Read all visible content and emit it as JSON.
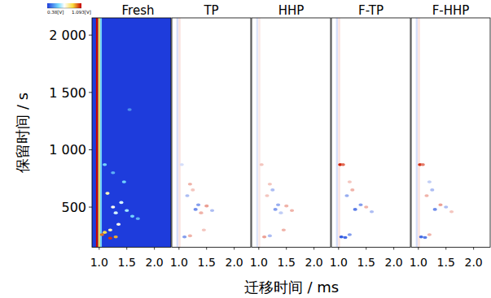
{
  "chart_data": {
    "type": "heatmap_panels",
    "xlabel": "迁移时间 / ms",
    "ylabel": "保留时间 / s",
    "xlim": [
      0.87,
      2.3
    ],
    "xticks": [
      {
        "value": 1,
        "label": "1.0"
      },
      {
        "value": 1.5,
        "label": "1.5"
      },
      {
        "value": 2,
        "label": "2.0"
      }
    ],
    "ylim": [
      150,
      2150
    ],
    "yticks": [
      500,
      {
        "value": 1000,
        "label": "1 000"
      },
      {
        "value": 1500,
        "label": "1 500"
      },
      {
        "value": 2000,
        "label": "2 000"
      }
    ],
    "colorbar": {
      "range": [
        0.38,
        1.093
      ],
      "ticks": [
        {
          "value": 0.38,
          "label": "0.38[V]"
        },
        {
          "value": 1.093,
          "label": "1.093[V]"
        }
      ]
    },
    "panels": [
      {
        "name": "Fresh",
        "type": "absolute",
        "ridges": [
          [
            0.96,
            1.09
          ],
          [
            1.0,
            0.9
          ],
          [
            1.03,
            0.6
          ]
        ],
        "cells": [
          [
            1.2,
            230,
            1.05
          ],
          [
            1.3,
            240,
            0.95
          ],
          [
            1.05,
            260,
            1.0
          ],
          [
            1.1,
            280,
            0.9
          ],
          [
            1.2,
            300,
            0.8
          ],
          [
            1.35,
            350,
            0.75
          ],
          [
            1.7,
            400,
            0.55
          ],
          [
            1.6,
            420,
            0.6
          ],
          [
            1.3,
            450,
            0.7
          ],
          [
            1.5,
            470,
            0.65
          ],
          [
            1.25,
            500,
            0.75
          ],
          [
            1.4,
            540,
            0.7
          ],
          [
            1.15,
            620,
            0.8
          ],
          [
            1.45,
            720,
            0.6
          ],
          [
            1.25,
            800,
            0.55
          ],
          [
            1.1,
            870,
            0.6
          ],
          [
            1.55,
            1350,
            0.5
          ]
        ]
      },
      {
        "name": "TP",
        "type": "difference",
        "ridges": [
          [
            0.97,
            -0.1
          ],
          [
            1.01,
            0.08
          ]
        ],
        "cells": [
          [
            1.1,
            240,
            -0.3
          ],
          [
            1.2,
            250,
            0.2
          ],
          [
            1.45,
            300,
            0.15
          ],
          [
            1.4,
            450,
            0.2
          ],
          [
            1.6,
            470,
            -0.2
          ],
          [
            1.3,
            480,
            -0.35
          ],
          [
            1.5,
            510,
            0.25
          ],
          [
            1.35,
            520,
            -0.3
          ],
          [
            1.15,
            600,
            -0.2
          ],
          [
            1.25,
            650,
            0.15
          ],
          [
            1.2,
            700,
            0.2
          ],
          [
            1.05,
            870,
            -0.1
          ]
        ]
      },
      {
        "name": "HHP",
        "type": "difference",
        "ridges": [
          [
            0.97,
            -0.08
          ],
          [
            1.01,
            0.06
          ]
        ],
        "cells": [
          [
            1.1,
            240,
            0.25
          ],
          [
            1.2,
            250,
            -0.2
          ],
          [
            1.45,
            300,
            0.2
          ],
          [
            1.4,
            450,
            -0.15
          ],
          [
            1.6,
            470,
            0.2
          ],
          [
            1.3,
            480,
            -0.3
          ],
          [
            1.5,
            510,
            0.2
          ],
          [
            1.35,
            520,
            -0.25
          ],
          [
            1.15,
            600,
            0.15
          ],
          [
            1.25,
            650,
            -0.2
          ],
          [
            1.2,
            700,
            0.15
          ],
          [
            1.05,
            870,
            0.15
          ]
        ]
      },
      {
        "name": "F-TP",
        "type": "difference",
        "ridges": [
          [
            0.97,
            -0.1
          ],
          [
            1.01,
            0.08
          ]
        ],
        "cells": [
          [
            1.05,
            240,
            -0.5
          ],
          [
            1.12,
            235,
            -0.45
          ],
          [
            1.2,
            260,
            -0.3
          ],
          [
            1.3,
            480,
            -0.4
          ],
          [
            1.4,
            520,
            -0.3
          ],
          [
            1.5,
            500,
            0.2
          ],
          [
            1.15,
            600,
            -0.25
          ],
          [
            1.25,
            650,
            0.2
          ],
          [
            1.6,
            460,
            -0.2
          ],
          [
            1.03,
            870,
            0.6
          ],
          [
            1.08,
            870,
            0.4
          ],
          [
            1.2,
            720,
            0.15
          ]
        ]
      },
      {
        "name": "F-HHP",
        "type": "difference",
        "ridges": [
          [
            0.97,
            -0.1
          ],
          [
            1.01,
            0.08
          ]
        ],
        "cells": [
          [
            1.05,
            240,
            -0.45
          ],
          [
            1.12,
            235,
            -0.4
          ],
          [
            1.2,
            260,
            0.2
          ],
          [
            1.3,
            480,
            -0.35
          ],
          [
            1.4,
            520,
            0.25
          ],
          [
            1.5,
            500,
            -0.2
          ],
          [
            1.15,
            600,
            0.2
          ],
          [
            1.25,
            650,
            -0.2
          ],
          [
            1.6,
            460,
            0.15
          ],
          [
            1.03,
            870,
            0.55
          ],
          [
            1.08,
            870,
            0.35
          ],
          [
            1.2,
            720,
            -0.15
          ]
        ]
      }
    ]
  }
}
